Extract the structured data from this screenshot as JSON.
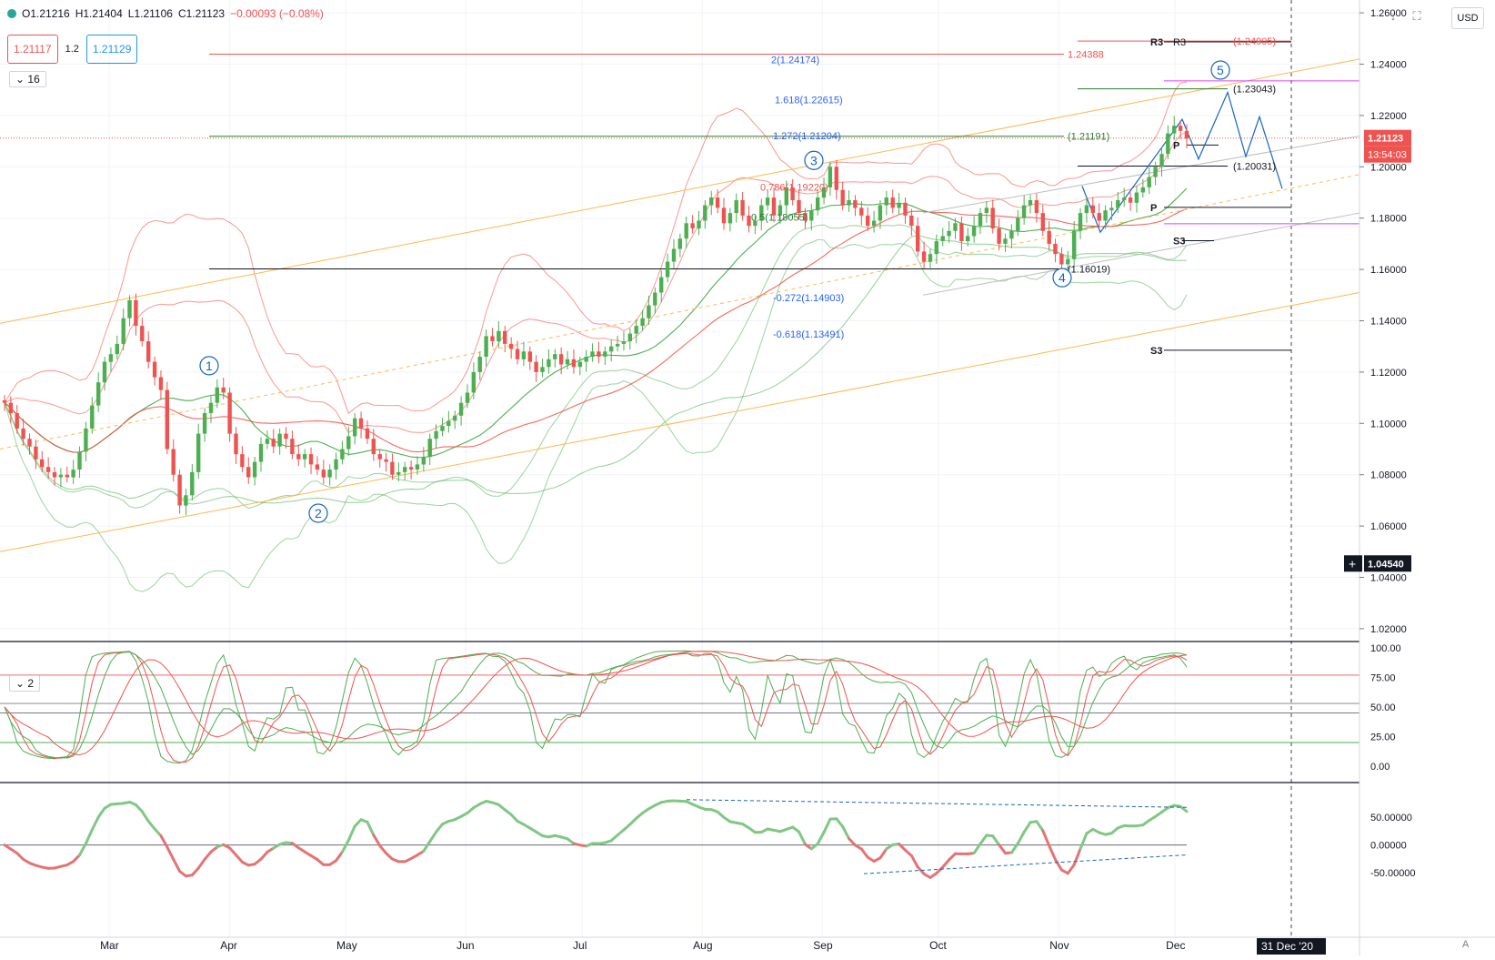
{
  "header": {
    "open": "O1.21216",
    "high": "H1.21404",
    "low": "L1.21106",
    "close": "C1.21123",
    "change": "−0.00093 (−0.08%)",
    "bid": "1.21117",
    "spread": "1.2",
    "ask": "1.21129",
    "collapse_main": "16",
    "collapse_stoch": "2",
    "currency": "USD",
    "auto": "A"
  },
  "colors": {
    "up": "#4caf50",
    "down": "#ef5350",
    "fib": "#2962ff",
    "channel": "#ffb74d",
    "bb_red": "#f44336",
    "bb_green": "#4caf50"
  },
  "price_axis": {
    "ticks": [
      "1.26000",
      "1.24000",
      "1.22000",
      "1.20000",
      "1.18000",
      "1.16000",
      "1.14000",
      "1.12000",
      "1.10000",
      "1.08000",
      "1.06000",
      "1.04000",
      "1.02000"
    ],
    "current_price": "1.21123",
    "countdown": "13:54:03",
    "crosshair": "1.04540"
  },
  "stoch_axis": {
    "ticks": [
      "100.00",
      "75.00",
      "50.00",
      "25.00",
      "0.00"
    ]
  },
  "osc_axis": {
    "ticks": [
      "50.00000",
      "0.00000",
      "-50.00000"
    ]
  },
  "time_axis": {
    "labels": [
      "Mar",
      "Apr",
      "May",
      "Jun",
      "Jul",
      "Aug",
      "Sep",
      "Oct",
      "Nov",
      "Dec"
    ],
    "cursor_label": "31 Dec '20"
  },
  "annotations": {
    "fib": [
      {
        "text": "2(1.24174)",
        "price": 1.2417
      },
      {
        "text": "1.618(1.22615)",
        "price": 1.2262
      },
      {
        "text": "1.272(1.21204)",
        "price": 1.2122
      },
      {
        "text": "0.786(1.19220)",
        "price": 1.1922
      },
      {
        "text": "0.5(1.18055)",
        "price": 1.1805
      },
      {
        "text": "-0.272(1.14903)",
        "price": 1.149
      },
      {
        "text": "-0.618(1.13491)",
        "price": 1.1349
      }
    ],
    "levels": [
      {
        "text": "1.24388",
        "price": 1.2439
      },
      {
        "text": "(1.21191)",
        "price": 1.2119
      },
      {
        "text": "(1.20031)",
        "price": 1.2003
      },
      {
        "text": "(1.16019)",
        "price": 1.1602
      },
      {
        "text": "(1.23043)",
        "price": 1.2304
      },
      {
        "text": "(1.24905)",
        "price": 1.249
      }
    ],
    "pivots": [
      "R3",
      "R3",
      "P",
      "P",
      "S3",
      "S3"
    ],
    "waves": [
      "1",
      "2",
      "3",
      "4",
      "5"
    ]
  },
  "chart_data": {
    "type": "candlestick",
    "title": "",
    "xlabel": "",
    "ylabel": "",
    "ylim": [
      1.015,
      1.265
    ],
    "x_start": "2020-02-03",
    "x_end": "2020-12-31",
    "closes": [
      1.108,
      1.104,
      1.098,
      1.094,
      1.091,
      1.086,
      1.083,
      1.081,
      1.079,
      1.08,
      1.079,
      1.082,
      1.089,
      1.098,
      1.107,
      1.116,
      1.124,
      1.127,
      1.131,
      1.141,
      1.148,
      1.138,
      1.132,
      1.124,
      1.118,
      1.113,
      1.09,
      1.08,
      1.068,
      1.072,
      1.081,
      1.096,
      1.104,
      1.108,
      1.114,
      1.112,
      1.096,
      1.088,
      1.083,
      1.079,
      1.085,
      1.092,
      1.094,
      1.091,
      1.096,
      1.094,
      1.088,
      1.086,
      1.088,
      1.084,
      1.082,
      1.079,
      1.082,
      1.086,
      1.09,
      1.095,
      1.102,
      1.098,
      1.094,
      1.088,
      1.086,
      1.085,
      1.08,
      1.081,
      1.083,
      1.082,
      1.084,
      1.087,
      1.094,
      1.097,
      1.099,
      1.101,
      1.103,
      1.108,
      1.112,
      1.12,
      1.126,
      1.134,
      1.132,
      1.136,
      1.131,
      1.129,
      1.125,
      1.128,
      1.124,
      1.12,
      1.122,
      1.125,
      1.127,
      1.123,
      1.125,
      1.122,
      1.124,
      1.126,
      1.128,
      1.126,
      1.128,
      1.13,
      1.131,
      1.132,
      1.135,
      1.138,
      1.141,
      1.146,
      1.151,
      1.157,
      1.163,
      1.168,
      1.172,
      1.178,
      1.176,
      1.179,
      1.185,
      1.188,
      1.184,
      1.178,
      1.182,
      1.187,
      1.181,
      1.177,
      1.179,
      1.185,
      1.188,
      1.181,
      1.185,
      1.192,
      1.187,
      1.182,
      1.179,
      1.183,
      1.188,
      1.192,
      1.2,
      1.191,
      1.185,
      1.187,
      1.184,
      1.181,
      1.177,
      1.179,
      1.185,
      1.188,
      1.184,
      1.186,
      1.181,
      1.177,
      1.167,
      1.163,
      1.166,
      1.171,
      1.173,
      1.175,
      1.178,
      1.171,
      1.173,
      1.177,
      1.182,
      1.184,
      1.176,
      1.17,
      1.172,
      1.175,
      1.18,
      1.185,
      1.187,
      1.182,
      1.175,
      1.17,
      1.166,
      1.162,
      1.164,
      1.175,
      1.182,
      1.185,
      1.182,
      1.179,
      1.183,
      1.184,
      1.187,
      1.188,
      1.186,
      1.19,
      1.192,
      1.196,
      1.2,
      1.205,
      1.213,
      1.216,
      1.214,
      1.211
    ]
  }
}
